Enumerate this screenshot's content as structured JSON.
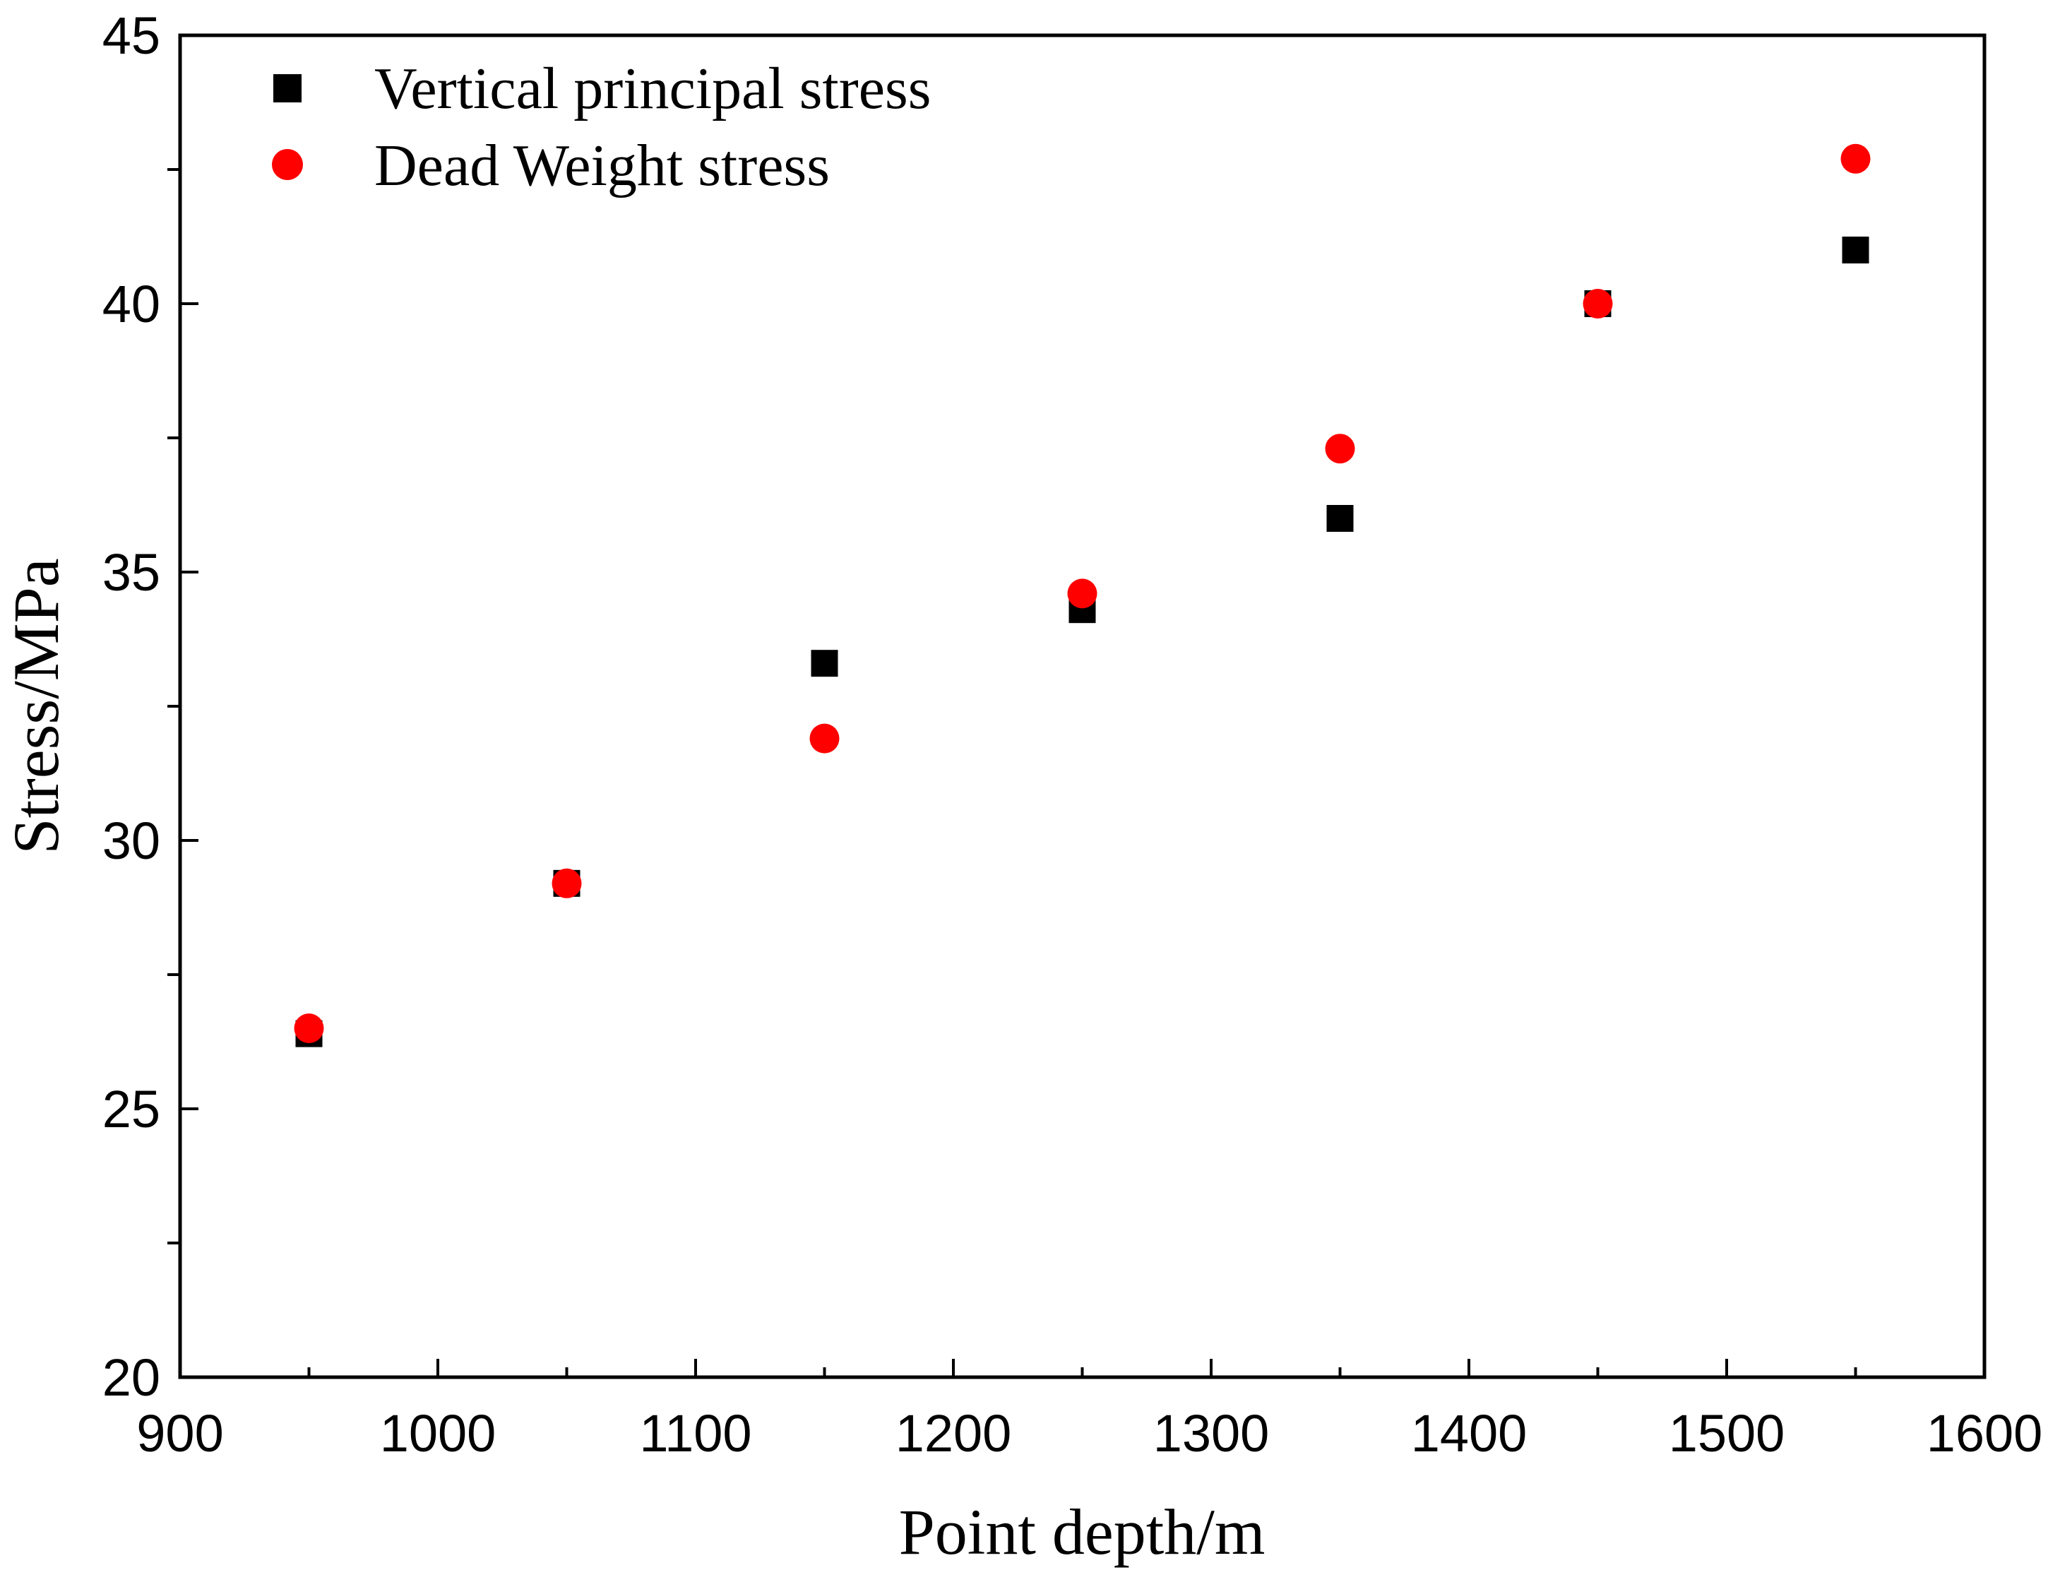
{
  "chart_data": {
    "type": "scatter",
    "title": "",
    "xlabel": "Point depth/m",
    "ylabel": "Stress/MPa",
    "xlim": [
      900,
      1600
    ],
    "ylim": [
      20,
      45
    ],
    "xticks": [
      900,
      1000,
      1100,
      1200,
      1300,
      1400,
      1500,
      1600
    ],
    "xtick_labels": [
      "900",
      "1000",
      "1100",
      "1200",
      "1300",
      "1400",
      "1500",
      "1600"
    ],
    "yticks": [
      20,
      25,
      30,
      35,
      40,
      45
    ],
    "ytick_labels": [
      "20",
      "25",
      "30",
      "35",
      "40",
      "45"
    ],
    "y_minor_ticks": [
      22.5,
      27.5,
      32.5,
      37.5,
      42.5
    ],
    "x_minor_ticks": [
      950,
      1050,
      1150,
      1250,
      1350,
      1450,
      1550
    ],
    "grid": false,
    "legend_position": "top-left",
    "series": [
      {
        "name": "Vertical principal stress",
        "marker": "square",
        "color": "#000000",
        "x": [
          950,
          1050,
          1150,
          1250,
          1350,
          1450,
          1550
        ],
        "y": [
          26.4,
          29.2,
          33.3,
          34.3,
          36.0,
          40.0,
          41.0
        ]
      },
      {
        "name": "Dead Weight stress",
        "marker": "circle",
        "color": "#ff0000",
        "x": [
          950,
          1050,
          1150,
          1250,
          1350,
          1450,
          1550
        ],
        "y": [
          26.5,
          29.2,
          31.9,
          34.6,
          37.3,
          40.0,
          42.7
        ]
      }
    ]
  }
}
